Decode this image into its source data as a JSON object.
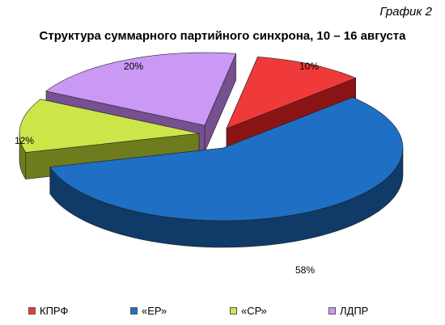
{
  "chart_number": "График 2",
  "chart_data": {
    "type": "pie",
    "title": "Структура суммарного партийного синхрона, 10 – 16 августа",
    "categories": [
      "КПРФ",
      "«ЕР»",
      "«СР»",
      "ЛДПР"
    ],
    "values": [
      10,
      58,
      12,
      20
    ],
    "value_labels": [
      "10%",
      "58%",
      "12%",
      "20%"
    ],
    "unit": "%",
    "style": "3d-exploded",
    "legend_position": "bottom",
    "colors": [
      "#F03A3A",
      "#1F6FC5",
      "#CCE64A",
      "#C999F5"
    ],
    "side_colors": [
      "#8A1414",
      "#103A68",
      "#6E7C1E",
      "#765090"
    ]
  }
}
